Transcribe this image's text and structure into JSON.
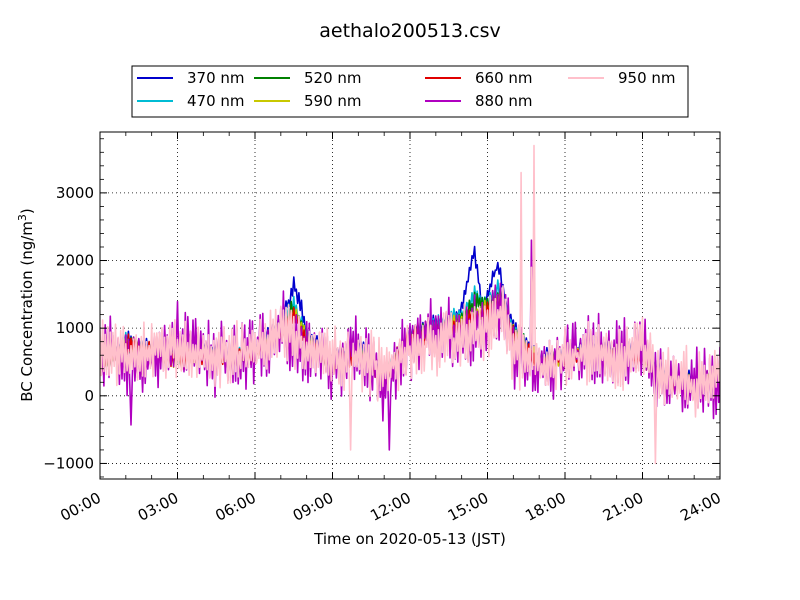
{
  "chart_data": {
    "type": "line",
    "title": "aethalo200513.csv",
    "xlabel": "Time on 2020-05-13 (JST)",
    "ylabel": "BC Concentration (ng/m",
    "ylabel_sup": "3",
    "ylabel_tail": ")",
    "xlim": [
      0,
      24
    ],
    "ylim": [
      -1230,
      3900
    ],
    "x_ticks": [
      0,
      3,
      6,
      9,
      12,
      15,
      18,
      21,
      24
    ],
    "x_tick_labels": [
      "00:00",
      "03:00",
      "06:00",
      "09:00",
      "12:00",
      "15:00",
      "18:00",
      "21:00",
      "24:00"
    ],
    "y_ticks": [
      -1000,
      0,
      1000,
      2000,
      3000
    ],
    "y_tick_labels": [
      "−1000",
      "0",
      "1000",
      "2000",
      "3000"
    ],
    "grid": true,
    "legend_position": "top-center",
    "series": [
      {
        "name": "370 nm",
        "color": "#0000cc",
        "anchors": [
          [
            0,
            500
          ],
          [
            0.5,
            650
          ],
          [
            1,
            850
          ],
          [
            2,
            700
          ],
          [
            3,
            650
          ],
          [
            4,
            700
          ],
          [
            5,
            600
          ],
          [
            6,
            700
          ],
          [
            6.5,
            900
          ],
          [
            7,
            1100
          ],
          [
            7.3,
            1400
          ],
          [
            7.5,
            1650
          ],
          [
            7.8,
            1300
          ],
          [
            8,
            900
          ],
          [
            9,
            550
          ],
          [
            10,
            750
          ],
          [
            11,
            350
          ],
          [
            11.5,
            400
          ],
          [
            12,
            950
          ],
          [
            13,
            1100
          ],
          [
            13.6,
            950
          ],
          [
            14,
            1300
          ],
          [
            14.5,
            2150
          ],
          [
            14.8,
            1300
          ],
          [
            15,
            1500
          ],
          [
            15.4,
            1950
          ],
          [
            15.8,
            1200
          ],
          [
            16.2,
            900
          ],
          [
            17,
            550
          ],
          [
            18,
            650
          ],
          [
            19,
            750
          ],
          [
            20,
            700
          ],
          [
            21,
            650
          ],
          [
            22,
            300
          ],
          [
            23,
            250
          ],
          [
            24,
            300
          ]
        ]
      },
      {
        "name": "470 nm",
        "color": "#00bcd4",
        "anchors": [
          [
            0,
            500
          ],
          [
            0.5,
            600
          ],
          [
            1,
            800
          ],
          [
            2,
            650
          ],
          [
            3,
            600
          ],
          [
            4,
            650
          ],
          [
            5,
            550
          ],
          [
            6,
            650
          ],
          [
            6.5,
            850
          ],
          [
            7,
            1050
          ],
          [
            7.5,
            1350
          ],
          [
            8,
            850
          ],
          [
            9,
            500
          ],
          [
            10,
            700
          ],
          [
            11,
            300
          ],
          [
            12,
            900
          ],
          [
            13,
            1050
          ],
          [
            14,
            1200
          ],
          [
            14.5,
            1500
          ],
          [
            15,
            1350
          ],
          [
            15.4,
            1600
          ],
          [
            16,
            1000
          ],
          [
            17,
            500
          ],
          [
            18,
            600
          ],
          [
            19,
            700
          ],
          [
            20,
            650
          ],
          [
            21,
            600
          ],
          [
            22,
            250
          ],
          [
            23,
            200
          ],
          [
            24,
            280
          ]
        ]
      },
      {
        "name": "520 nm",
        "color": "#008000",
        "anchors": [
          [
            0,
            480
          ],
          [
            0.5,
            580
          ],
          [
            1,
            780
          ],
          [
            2,
            640
          ],
          [
            3,
            580
          ],
          [
            4,
            640
          ],
          [
            5,
            540
          ],
          [
            6,
            640
          ],
          [
            7,
            1000
          ],
          [
            7.5,
            1300
          ],
          [
            8,
            830
          ],
          [
            9,
            480
          ],
          [
            10,
            680
          ],
          [
            11,
            280
          ],
          [
            12,
            880
          ],
          [
            13,
            1000
          ],
          [
            14,
            1150
          ],
          [
            14.5,
            1400
          ],
          [
            15,
            1300
          ],
          [
            15.5,
            1500
          ],
          [
            16,
            950
          ],
          [
            17,
            480
          ],
          [
            18,
            580
          ],
          [
            19,
            680
          ],
          [
            20,
            630
          ],
          [
            21,
            580
          ],
          [
            22,
            230
          ],
          [
            23,
            190
          ],
          [
            24,
            270
          ]
        ]
      },
      {
        "name": "590 nm",
        "color": "#c8c800",
        "anchors": [
          [
            0,
            470
          ],
          [
            1,
            770
          ],
          [
            2,
            630
          ],
          [
            3,
            570
          ],
          [
            4,
            630
          ],
          [
            5,
            530
          ],
          [
            6,
            630
          ],
          [
            7,
            980
          ],
          [
            7.5,
            1250
          ],
          [
            8,
            820
          ],
          [
            9,
            470
          ],
          [
            10,
            670
          ],
          [
            11,
            270
          ],
          [
            12,
            870
          ],
          [
            13,
            980
          ],
          [
            14,
            1100
          ],
          [
            15,
            1280
          ],
          [
            15.5,
            1450
          ],
          [
            16,
            930
          ],
          [
            17,
            470
          ],
          [
            18,
            570
          ],
          [
            19,
            670
          ],
          [
            20,
            620
          ],
          [
            21,
            570
          ],
          [
            22,
            220
          ],
          [
            23,
            180
          ],
          [
            24,
            260
          ]
        ]
      },
      {
        "name": "660 nm",
        "color": "#e00000",
        "anchors": [
          [
            0,
            460
          ],
          [
            1,
            760
          ],
          [
            2,
            620
          ],
          [
            3,
            560
          ],
          [
            4,
            620
          ],
          [
            5,
            520
          ],
          [
            6,
            620
          ],
          [
            7,
            960
          ],
          [
            7.5,
            1200
          ],
          [
            8,
            800
          ],
          [
            9,
            460
          ],
          [
            10,
            660
          ],
          [
            11,
            260
          ],
          [
            12,
            860
          ],
          [
            13,
            960
          ],
          [
            14,
            1050
          ],
          [
            15,
            1250
          ],
          [
            15.5,
            1400
          ],
          [
            16,
            900
          ],
          [
            17,
            460
          ],
          [
            18,
            560
          ],
          [
            19,
            660
          ],
          [
            20,
            610
          ],
          [
            21,
            560
          ],
          [
            22,
            210
          ],
          [
            23,
            170
          ],
          [
            24,
            250
          ]
        ]
      },
      {
        "name": "880 nm",
        "color": "#b000c0",
        "anchors": [
          [
            0,
            700
          ],
          [
            1,
            500
          ],
          [
            2,
            550
          ],
          [
            3,
            800
          ],
          [
            4,
            600
          ],
          [
            5,
            550
          ],
          [
            6,
            700
          ],
          [
            7,
            1000
          ],
          [
            8,
            700
          ],
          [
            9,
            500
          ],
          [
            10,
            650
          ],
          [
            11,
            100
          ],
          [
            12,
            800
          ],
          [
            13,
            900
          ],
          [
            14,
            900
          ],
          [
            15,
            1100
          ],
          [
            15.5,
            1300
          ],
          [
            16,
            700
          ],
          [
            17,
            400
          ],
          [
            18,
            600
          ],
          [
            19,
            650
          ],
          [
            20,
            600
          ],
          [
            21,
            700
          ],
          [
            22,
            200
          ],
          [
            23,
            150
          ],
          [
            24,
            250
          ]
        ]
      },
      {
        "name": "950 nm",
        "color": "#ffc0cb",
        "anchors": [
          [
            0,
            700
          ],
          [
            1,
            600
          ],
          [
            2,
            650
          ],
          [
            3,
            700
          ],
          [
            4,
            600
          ],
          [
            5,
            550
          ],
          [
            6,
            700
          ],
          [
            7,
            950
          ],
          [
            8,
            700
          ],
          [
            9,
            550
          ],
          [
            10,
            600
          ],
          [
            11,
            300
          ],
          [
            12,
            700
          ],
          [
            13,
            800
          ],
          [
            14,
            850
          ],
          [
            15,
            1050
          ],
          [
            15.5,
            1250
          ],
          [
            16,
            700
          ],
          [
            17,
            450
          ],
          [
            18,
            550
          ],
          [
            19,
            600
          ],
          [
            20,
            600
          ],
          [
            21,
            650
          ],
          [
            22,
            250
          ],
          [
            23,
            200
          ],
          [
            24,
            280
          ]
        ]
      }
    ],
    "spikes": [
      {
        "series": "950 nm",
        "x": 16.8,
        "y": 3700
      },
      {
        "series": "950 nm",
        "x": 16.7,
        "y": 1900
      },
      {
        "series": "950 nm",
        "x": 16.3,
        "y": 3300
      },
      {
        "series": "880 nm",
        "x": 16.7,
        "y": 2300
      },
      {
        "series": "950 nm",
        "x": 21.5,
        "y": -1000
      },
      {
        "series": "880 nm",
        "x": 11.2,
        "y": -800
      },
      {
        "series": "880 nm",
        "x": 1.2,
        "y": -430
      },
      {
        "series": "950 nm",
        "x": 9.7,
        "y": -800
      }
    ]
  }
}
